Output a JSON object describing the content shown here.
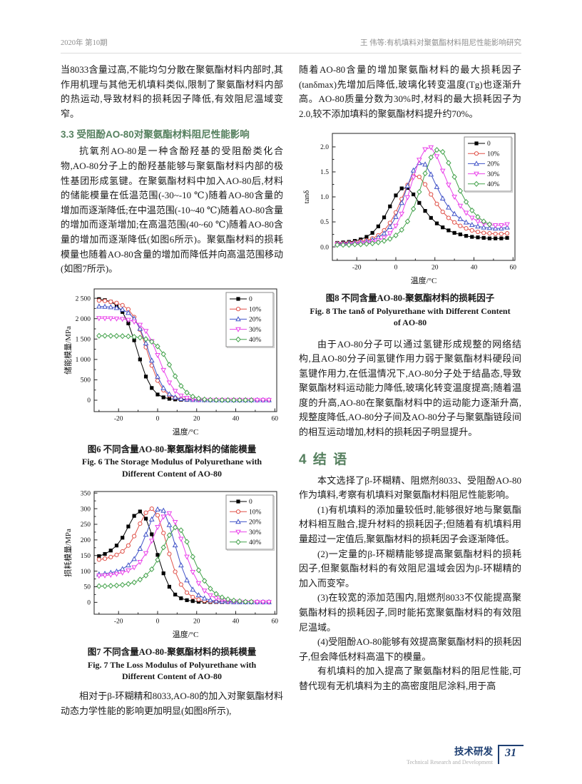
{
  "header": {
    "left": "2020年 第10期",
    "right": "王    伟等:有机填料对聚氨酯材料阻尼性能影响研究"
  },
  "left_column": {
    "para1": "当8033含量过高,不能均匀分散在聚氨酯材料内部时,其作用机理与其他无机填料类似,限制了聚氨酯材料内部的热运动,导致材料的损耗因子降低,有效阻尼温域变窄。",
    "heading_33": "3.3  受阻酚AO-80对聚氨酯材料阻尼性能影响",
    "para2": "抗氧剂AO-80是一种含酚羟基的受阻酚类化合物,AO-80分子上的酚羟基能够与聚氨酯材料内部的极性基团形成氢键。在聚氨酯材料中加入AO-80后,材料的储能模量在低温范围(-30~-10 ℃)随着AO-80含量的增加而逐渐降低;在中温范围(-10~40 ℃)随着AO-80含量的增加而逐渐增加;在高温范围(40~60 ℃)随着AO-80含量的增加而逐渐降低(如图6所示)。聚氨酯材料的损耗模量也随着AO-80含量的增加而降低并向高温范围移动(如图7所示)。",
    "fig6_caption_cn": "图6  不同含量AO-80-聚氨酯材料的储能模量",
    "fig6_caption_en": "Fig. 6  The Storage Modulus of Polyurethane with Different Content of AO-80",
    "fig7_caption_cn": "图7  不同含量AO-80-聚氨酯材料的损耗模量",
    "fig7_caption_en": "Fig. 7  The Loss Modulus of Polyurethane with Different Content of AO-80",
    "para3": "相对于β-环糊精和8033,AO-80的加入对聚氨酯材料动态力学性能的影响更加明显(如图8所示),"
  },
  "right_column": {
    "para1": "随着AO-80含量的增加聚氨酯材料的最大损耗因子(tanδmax)先增加后降低,玻璃化转变温度(Tg)也逐渐升高。AO-80质量分数为30%时,材料的最大损耗因子为2.0,较不添加填料的聚氨酯材料提升约70%。",
    "fig8_caption_cn": "图8  不同含量AO-80-聚氨酯材料的损耗因子",
    "fig8_caption_en": "Fig. 8  The tanδ of Polyurethane with Different Content of AO-80",
    "para2": "由于AO-80分子可以通过氢键形成规整的网络结构,且AO-80分子间氢键作用力弱于聚氨酯材料硬段间氢键作用力,在低温情况下,AO-80分子处于结晶态,导致聚氨酯材料运动能力降低,玻璃化转变温度提高;随着温度的升高,AO-80在聚氨酯材料中的运动能力逐渐升高,规整度降低,AO-80分子间及AO-80分子与聚氨酯链段间的相互运动增加,材料的损耗因子明显提升。",
    "heading_4": "4  结  语",
    "para3": "本文选择了β-环糊精、阻燃剂8033、受阻酚AO-80作为填料,考察有机填料对聚氨酯材料阻尼性能影响。",
    "para4": "(1)有机填料的添加量较低时,能够很好地与聚氨酯材料相互融合,提升材料的损耗因子;但随着有机填料用量超过一定值后,聚氨酯材料的损耗因子会逐渐降低。",
    "para5": "(2)一定量的β-环糊精能够提高聚氨酯材料的损耗因子,但聚氨酯材料的有效阻尼温域会因为β-环糊精的加入而变窄。",
    "para6": "(3)在较宽的添加范围内,阻燃剂8033不仅能提高聚氨酯材料的损耗因子,同时能拓宽聚氨酯材料的有效阻尼温域。",
    "para7": "(4)受阻酚AO-80能够有效提高聚氨酯材料的损耗因子,但会降低材料高温下的模量。",
    "para8": "有机填料的加入提高了聚氨酯材料的阻尼性能,可替代现有无机填料为主的高密度阻尼涂料,用于高"
  },
  "footer": {
    "label_cn": "技术研发",
    "label_en": "Technical Research and Development",
    "page": "31"
  },
  "colors": {
    "series_black": "#000000",
    "series_red": "#e05149",
    "series_blue": "#4153c8",
    "series_magenta": "#ea43ea",
    "series_green": "#43a24b",
    "heading_green": "#56805f",
    "footer_navy": "#1e3f72"
  },
  "chart_data": [
    {
      "id": "fig6",
      "type": "line",
      "title": "不同含量AO-80-聚氨酯材料的储能模量",
      "xlabel": "温度/°C",
      "ylabel": "储能模量/MPa",
      "xlim": [
        -32.5,
        61
      ],
      "ylim": [
        -280,
        2730
      ],
      "xticks": [
        -20,
        0,
        20,
        40,
        60
      ],
      "xminor": [
        -30,
        -10,
        10,
        30,
        50
      ],
      "yticks": [
        0,
        500,
        1000,
        1500,
        2000,
        2500
      ],
      "ytick_labels": [
        "0",
        "500",
        "1 000",
        "1 500",
        "2 000",
        "2 500"
      ],
      "yminor": [
        250,
        750,
        1250,
        1750,
        2250
      ],
      "legend_position": "top-right",
      "x_start": -30,
      "x_step": 3,
      "series": [
        {
          "name": "0",
          "color": "#000000",
          "marker": "square",
          "y": [
            2480,
            2455,
            2415,
            2330,
            2165,
            1885,
            1470,
            1000,
            580,
            300,
            140,
            70,
            35,
            20,
            12,
            8,
            6,
            5,
            4,
            4,
            3,
            3,
            3,
            3,
            3,
            3,
            3,
            3,
            3,
            3
          ]
        },
        {
          "name": "10%",
          "color": "#e05149",
          "marker": "circle",
          "y": [
            2445,
            2435,
            2415,
            2385,
            2330,
            2230,
            2040,
            1730,
            1300,
            850,
            480,
            245,
            120,
            60,
            30,
            16,
            10,
            7,
            5,
            4,
            4,
            3,
            3,
            3,
            3,
            3,
            3,
            3,
            3,
            3
          ]
        },
        {
          "name": "20%",
          "color": "#4153c8",
          "marker": "triangle-up",
          "y": [
            2300,
            2295,
            2285,
            2265,
            2225,
            2145,
            2000,
            1755,
            1395,
            975,
            580,
            300,
            148,
            70,
            34,
            17,
            10,
            6,
            5,
            4,
            4,
            3,
            3,
            3,
            3,
            3,
            3,
            3,
            3,
            3
          ]
        },
        {
          "name": "30%",
          "color": "#ea43ea",
          "marker": "triangle-down",
          "y": [
            2010,
            2008,
            2005,
            2000,
            1990,
            1968,
            1925,
            1845,
            1695,
            1445,
            1105,
            740,
            430,
            225,
            110,
            52,
            25,
            12,
            7,
            5,
            4,
            4,
            3,
            3,
            3,
            3,
            3,
            3,
            3,
            3
          ]
        },
        {
          "name": "40%",
          "color": "#43a24b",
          "marker": "diamond",
          "y": [
            1580,
            1580,
            1578,
            1576,
            1572,
            1566,
            1555,
            1535,
            1500,
            1435,
            1320,
            1130,
            870,
            590,
            350,
            185,
            90,
            42,
            19,
            9,
            5,
            4,
            3,
            3,
            3,
            3,
            3
          ]
        }
      ]
    },
    {
      "id": "fig7",
      "type": "line",
      "title": "不同含量AO-80-聚氨酯材料的损耗模量",
      "xlabel": "温度/°C",
      "ylabel": "损耗模量/MPa",
      "xlim": [
        -32.5,
        61
      ],
      "ylim": [
        -38,
        355
      ],
      "xticks": [
        -20,
        0,
        20,
        40,
        60
      ],
      "xminor": [
        -30,
        -10,
        10,
        30,
        50
      ],
      "yticks": [
        0,
        50,
        100,
        150,
        200,
        250,
        300,
        350
      ],
      "ytick_labels": [
        "0",
        "50",
        "100",
        "150",
        "200",
        "250",
        "300",
        "350"
      ],
      "yminor": [
        25,
        75,
        125,
        175,
        225,
        275,
        325
      ],
      "legend_position": "top-right",
      "x_start": -30,
      "x_step": 3,
      "series": [
        {
          "name": "0",
          "color": "#000000",
          "marker": "square",
          "y": [
            148,
            155,
            166,
            182,
            207,
            243,
            277,
            291,
            268,
            218,
            152,
            93,
            50,
            25,
            13,
            7,
            4,
            2,
            2,
            1,
            1,
            1,
            1,
            1,
            1,
            1,
            1,
            1,
            1,
            1
          ]
        },
        {
          "name": "10%",
          "color": "#e05149",
          "marker": "circle",
          "y": [
            137,
            140,
            145,
            152,
            163,
            182,
            212,
            252,
            287,
            300,
            279,
            222,
            155,
            98,
            57,
            31,
            17,
            9,
            5,
            3,
            2,
            2,
            1,
            1,
            1,
            1,
            1,
            1,
            1,
            1
          ]
        },
        {
          "name": "20%",
          "color": "#4153c8",
          "marker": "triangle-up",
          "y": [
            90,
            92,
            95,
            99,
            107,
            119,
            139,
            172,
            217,
            266,
            298,
            294,
            248,
            183,
            119,
            71,
            41,
            23,
            13,
            7,
            4,
            3,
            2,
            1,
            1,
            1,
            1,
            1,
            1,
            1
          ]
        },
        {
          "name": "30%",
          "color": "#ea43ea",
          "marker": "triangle-down",
          "y": [
            85,
            86,
            88,
            91,
            95,
            102,
            112,
            129,
            157,
            197,
            241,
            274,
            285,
            257,
            203,
            146,
            97,
            61,
            37,
            22,
            13,
            8,
            5,
            3,
            2,
            1,
            1,
            1,
            1,
            1
          ]
        },
        {
          "name": "40%",
          "color": "#43a24b",
          "marker": "diamond",
          "y": [
            52,
            52,
            53,
            54,
            56,
            59,
            64,
            73,
            86,
            106,
            136,
            176,
            215,
            240,
            231,
            194,
            146,
            103,
            69,
            44,
            27,
            16,
            10,
            6,
            4,
            2,
            2
          ]
        }
      ]
    },
    {
      "id": "fig8",
      "type": "line",
      "title": "不同含量AO-80-聚氨酯材料的损耗因子",
      "xlabel": "温度/°C",
      "ylabel": "tanδ",
      "xlim": [
        -32.5,
        61
      ],
      "ylim": [
        -0.27,
        2.27
      ],
      "xticks": [
        -20,
        0,
        20,
        40,
        60
      ],
      "xminor": [
        -30,
        -10,
        10,
        30,
        50
      ],
      "yticks": [
        0,
        0.5,
        1.0,
        1.5,
        2.0
      ],
      "ytick_labels": [
        "0.0",
        "0.5",
        "1.0",
        "1.5",
        "2.0"
      ],
      "yminor": [
        0.25,
        0.75,
        1.25,
        1.75
      ],
      "legend_position": "top-right",
      "x_start": -30,
      "x_step": 3,
      "series": [
        {
          "name": "0",
          "color": "#000000",
          "marker": "square",
          "y": [
            0.08,
            0.09,
            0.1,
            0.12,
            0.15,
            0.2,
            0.28,
            0.41,
            0.59,
            0.81,
            1.03,
            1.17,
            1.18,
            1.05,
            0.88,
            0.72,
            0.58,
            0.47,
            0.39,
            0.33,
            0.28,
            0.25,
            0.22,
            0.2,
            0.19,
            0.18,
            0.17,
            0.17,
            0.17,
            0.18
          ]
        },
        {
          "name": "10%",
          "color": "#e05149",
          "marker": "circle",
          "y": [
            0.07,
            0.07,
            0.08,
            0.09,
            0.11,
            0.13,
            0.17,
            0.23,
            0.33,
            0.48,
            0.69,
            0.96,
            1.24,
            1.42,
            1.4,
            1.25,
            1.05,
            0.86,
            0.7,
            0.58,
            0.49,
            0.42,
            0.37,
            0.33,
            0.3,
            0.28,
            0.27,
            0.26,
            0.26,
            0.27
          ]
        },
        {
          "name": "20%",
          "color": "#4153c8",
          "marker": "triangle-up",
          "y": [
            0.06,
            0.06,
            0.07,
            0.08,
            0.09,
            0.11,
            0.14,
            0.19,
            0.27,
            0.4,
            0.6,
            0.88,
            1.22,
            1.53,
            1.68,
            1.65,
            1.45,
            1.2,
            0.97,
            0.79,
            0.66,
            0.56,
            0.49,
            0.44,
            0.41,
            0.39,
            0.38,
            0.37,
            0.37,
            0.39
          ]
        },
        {
          "name": "30%",
          "color": "#ea43ea",
          "marker": "triangle-down",
          "y": [
            0.05,
            0.05,
            0.05,
            0.06,
            0.07,
            0.08,
            0.1,
            0.13,
            0.18,
            0.27,
            0.42,
            0.66,
            0.99,
            1.39,
            1.74,
            1.95,
            1.99,
            1.81,
            1.52,
            1.24,
            1.0,
            0.82,
            0.68,
            0.58,
            0.51,
            0.47,
            0.44,
            0.43,
            0.43,
            0.45
          ]
        },
        {
          "name": "40%",
          "color": "#43a24b",
          "marker": "diamond",
          "y": [
            0.04,
            0.04,
            0.04,
            0.05,
            0.05,
            0.06,
            0.07,
            0.09,
            0.12,
            0.16,
            0.23,
            0.34,
            0.51,
            0.76,
            1.1,
            1.47,
            1.79,
            1.94,
            1.9,
            1.68,
            1.4,
            1.12,
            0.9,
            0.73,
            0.6,
            0.51,
            0.45
          ]
        }
      ]
    }
  ]
}
